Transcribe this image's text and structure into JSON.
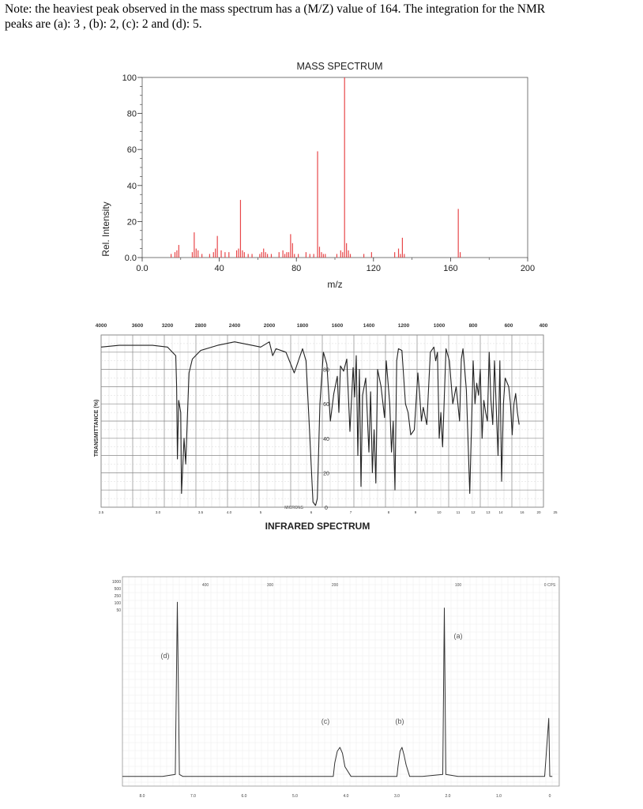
{
  "note": {
    "line1": "Note: the heaviest peak observed in the mass spectrum has a (M/Z) value of 164. The integration for the NMR",
    "line2": "peaks are (a): 3 , (b): 2, (c): 2 and (d): 5."
  },
  "chart_data": [
    {
      "type": "bar",
      "title": "MASS SPECTRUM",
      "xlabel": "m/z",
      "ylabel": "Rel. Intensity",
      "xlim": [
        0,
        200
      ],
      "ylim": [
        0,
        100
      ],
      "x_ticks": [
        "0.0",
        "40",
        "80",
        "120",
        "160",
        "200"
      ],
      "y_ticks": [
        "0.0",
        "20",
        "40",
        "60",
        "80",
        "100"
      ],
      "bar_color": "#e8474a",
      "peaks": {
        "x": [
          15,
          17,
          18,
          19,
          26,
          27,
          28,
          29,
          31,
          35,
          37,
          38,
          39,
          41,
          43,
          45,
          49,
          50,
          51,
          52,
          53,
          55,
          57,
          61,
          62,
          63,
          64,
          65,
          67,
          71,
          73,
          74,
          75,
          76,
          77,
          78,
          79,
          81,
          85,
          87,
          89,
          91,
          92,
          93,
          94,
          95,
          101,
          103,
          104,
          105,
          106,
          107,
          108,
          115,
          119,
          131,
          133,
          134,
          135,
          136,
          164,
          165
        ],
        "y": [
          2,
          3,
          4,
          7,
          3,
          14,
          5,
          4,
          2,
          2,
          3,
          5,
          12,
          4,
          3,
          3,
          4,
          5,
          32,
          4,
          3,
          2,
          2,
          2,
          3,
          5,
          3,
          2,
          2,
          3,
          4,
          2,
          3,
          3,
          13,
          8,
          2,
          2,
          3,
          2,
          2,
          59,
          6,
          3,
          2,
          2,
          2,
          4,
          3,
          100,
          8,
          4,
          2,
          2,
          3,
          3,
          5,
          2,
          11,
          2,
          27,
          3
        ]
      }
    },
    {
      "type": "line",
      "title": "INFRARED SPECTRUM",
      "xlabel": "MICRONS",
      "ylabel": "TRANSMITTANCE (%)",
      "x_ticks_top": [
        "4000",
        "3600",
        "3200",
        "2800",
        "2400",
        "2000",
        "1800",
        "1600",
        "1400",
        "1200",
        "1000",
        "800",
        "600",
        "400"
      ],
      "x_ticks_bottom": [
        "2.5",
        "3.0",
        "3.5",
        "4.0",
        "5",
        "6",
        "7",
        "8",
        "9",
        "10",
        "11",
        "12",
        "13",
        "14",
        "16",
        "20",
        "25"
      ],
      "y_ticks": [
        "80",
        "60",
        "40",
        "20",
        "0"
      ],
      "series": [
        {
          "x": [
            4000,
            3800,
            3600,
            3400,
            3200,
            3100,
            3090,
            3080,
            3065,
            3040,
            3030,
            3000,
            2980,
            2960,
            2940,
            2900,
            2800,
            2600,
            2400,
            2200,
            2100,
            2000,
            1980,
            1960,
            1900,
            1850,
            1800,
            1780,
            1760,
            1740,
            1725,
            1715,
            1700,
            1680,
            1660,
            1640,
            1620,
            1600,
            1590,
            1580,
            1560,
            1540,
            1520,
            1500,
            1490,
            1480,
            1470,
            1460,
            1450,
            1440,
            1420,
            1400,
            1390,
            1380,
            1370,
            1360,
            1350,
            1330,
            1310,
            1300,
            1280,
            1270,
            1260,
            1250,
            1240,
            1230,
            1210,
            1190,
            1175,
            1160,
            1140,
            1120,
            1110,
            1100,
            1090,
            1070,
            1050,
            1030,
            1020,
            1010,
            1000,
            990,
            980,
            960,
            940,
            920,
            900,
            880,
            870,
            860,
            850,
            840,
            820,
            800,
            790,
            780,
            770,
            760,
            750,
            740,
            730,
            720,
            710,
            700,
            690,
            680,
            660,
            650,
            640,
            630,
            620,
            600,
            590,
            580,
            570,
            560,
            550,
            540
          ],
          "y": [
            93,
            94,
            94,
            94,
            93,
            88,
            70,
            28,
            62,
            55,
            8,
            40,
            25,
            52,
            78,
            86,
            91,
            94,
            96,
            94,
            93,
            96,
            88,
            92,
            90,
            78,
            92,
            85,
            45,
            3,
            1,
            5,
            60,
            90,
            83,
            50,
            66,
            76,
            55,
            82,
            79,
            86,
            44,
            81,
            64,
            88,
            30,
            80,
            12,
            65,
            75,
            32,
            67,
            20,
            45,
            14,
            80,
            70,
            52,
            85,
            60,
            32,
            50,
            10,
            85,
            92,
            91,
            60,
            55,
            42,
            45,
            78,
            65,
            50,
            58,
            48,
            90,
            93,
            85,
            90,
            40,
            55,
            35,
            92,
            85,
            60,
            70,
            50,
            86,
            92,
            80,
            68,
            8,
            85,
            60,
            72,
            65,
            80,
            40,
            62,
            55,
            50,
            90,
            62,
            48,
            85,
            30,
            85,
            15,
            60,
            75,
            70,
            60,
            42,
            60,
            66,
            55,
            48
          ]
        }
      ],
      "annotations": [
        "80",
        "60",
        "40",
        "20",
        "0"
      ]
    },
    {
      "type": "line",
      "title": "",
      "xlabel": "",
      "ylabel": "",
      "x_ticks_bottom": [
        "8.0",
        "7.0",
        "6.0",
        "5.0",
        "4.0",
        "3.0",
        "2.0",
        "1.0",
        "0"
      ],
      "x_ticks_top": [
        "400",
        "300",
        "200",
        "100",
        "0 CPS"
      ],
      "y_ticks": [
        "1000",
        "500",
        "250",
        "100",
        "50"
      ],
      "peak_labels": [
        "(a)",
        "(b)",
        "(c)",
        "(d)"
      ],
      "series": [
        {
          "x": [
            8.7,
            7.6,
            7.35,
            7.31,
            7.27,
            7.2,
            7.0,
            6.0,
            5.0,
            4.25,
            4.22,
            4.17,
            4.12,
            4.07,
            4.02,
            3.9,
            3.0,
            2.98,
            2.94,
            2.9,
            2.86,
            2.82,
            2.75,
            2.5,
            2.1,
            2.07,
            2.04,
            1.8,
            1.0,
            0.1,
            0.02,
            0.0,
            -0.05
          ],
          "y": [
            5,
            5,
            6,
            95,
            6,
            5,
            5,
            5,
            5,
            5,
            12,
            18,
            20,
            17,
            10,
            5,
            5,
            10,
            18,
            20,
            16,
            11,
            5,
            5,
            6,
            92,
            6,
            5,
            5,
            5,
            35,
            5,
            5
          ]
        }
      ]
    }
  ],
  "ms_ticklabels_note": "",
  "ir_axis_unit": "",
  "nmr_axis_unit": ""
}
